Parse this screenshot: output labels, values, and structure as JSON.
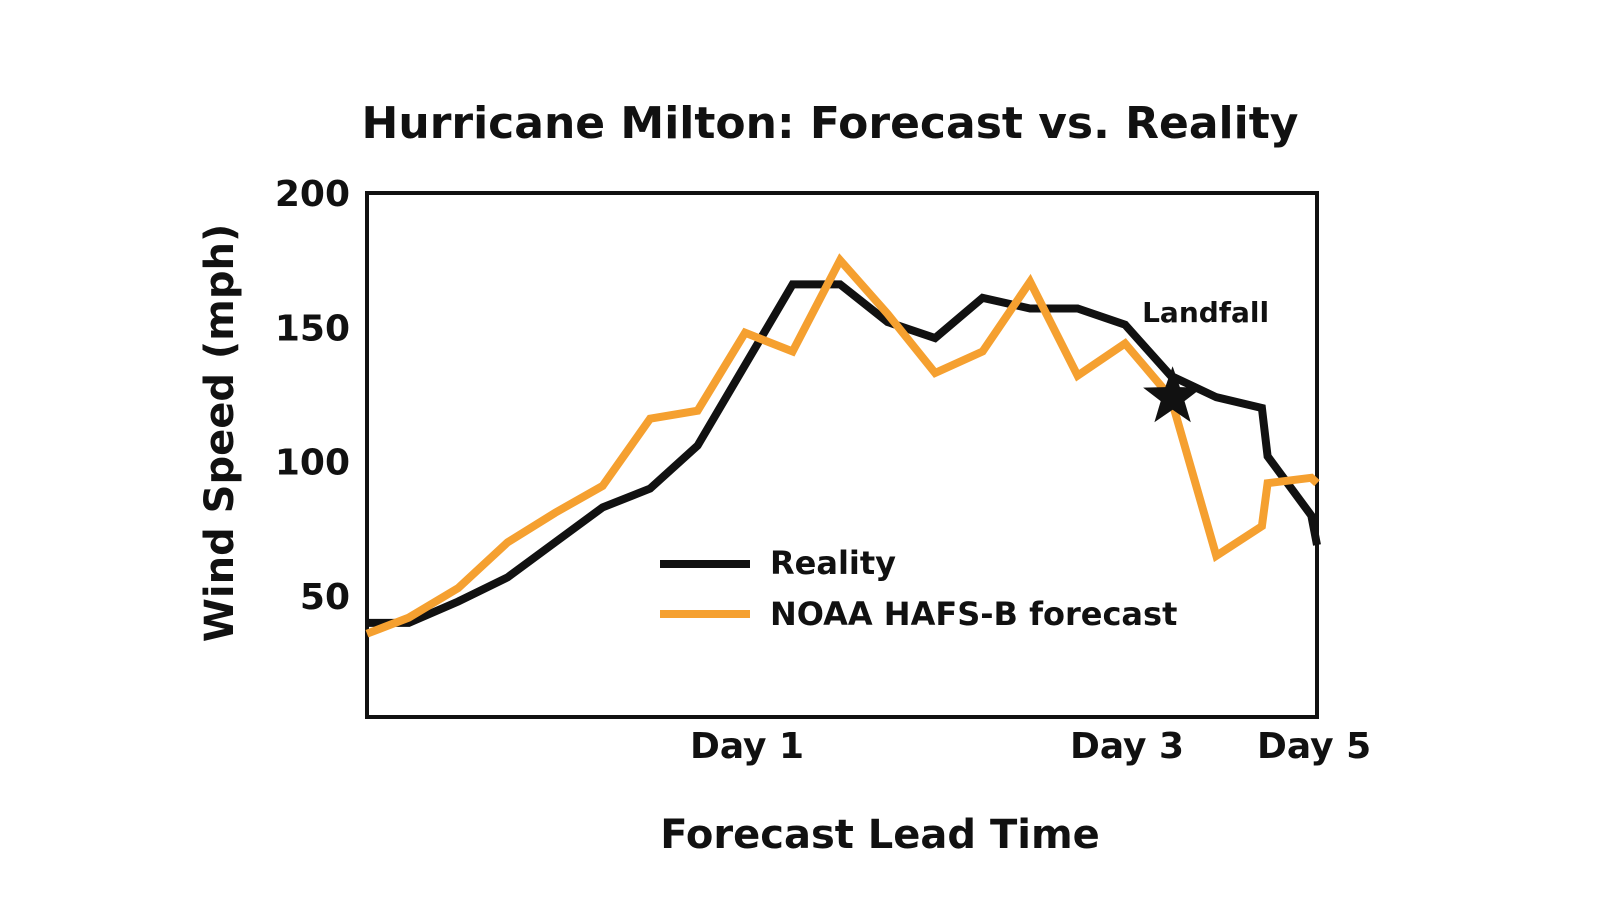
{
  "chart_data": {
    "type": "line",
    "title": "Hurricane Milton: Forecast vs. Reality",
    "xlabel": "Forecast Lead Time",
    "ylabel": "Wind Speed (mph)",
    "xlim": [
      0,
      5
    ],
    "ylim": [
      5,
      200
    ],
    "x_ticks": [
      {
        "value": 2,
        "label": "Day 1"
      },
      {
        "value": 4,
        "label": "Day 3"
      },
      {
        "value": 5,
        "label": "Day 5"
      }
    ],
    "y_ticks": [
      {
        "value": 50,
        "label": "50"
      },
      {
        "value": 100,
        "label": "100"
      },
      {
        "value": 150,
        "label": "150"
      },
      {
        "value": 200,
        "label": "200"
      }
    ],
    "grid": false,
    "legend_position": "bottom-center",
    "series": [
      {
        "name": "Reality",
        "color": "#111111",
        "x": [
          0,
          0.22,
          0.48,
          0.74,
          0.99,
          1.24,
          1.49,
          1.74,
          1.99,
          2.24,
          2.49,
          2.74,
          2.99,
          3.24,
          3.49,
          3.74,
          3.99,
          4.23,
          4.47,
          4.71,
          4.74,
          4.97,
          5.0
        ],
        "values": [
          40,
          40,
          48,
          57,
          70,
          83,
          90,
          106,
          136,
          166,
          166,
          152,
          146,
          161,
          157,
          157,
          151,
          132,
          124,
          120,
          102,
          80,
          69
        ]
      },
      {
        "name": "NOAA HAFS-B forecast",
        "color": "#f5a030",
        "x": [
          0,
          0.22,
          0.48,
          0.74,
          0.99,
          1.24,
          1.49,
          1.74,
          1.99,
          2.24,
          2.49,
          2.74,
          2.99,
          3.24,
          3.49,
          3.74,
          3.99,
          4.23,
          4.47,
          4.71,
          4.74,
          4.97,
          5.0
        ],
        "values": [
          36,
          42,
          53,
          70,
          81,
          91,
          116,
          119,
          148,
          141,
          175,
          155,
          133,
          141,
          167,
          132,
          144,
          124,
          65,
          76,
          92,
          94,
          92
        ]
      }
    ],
    "annotations": [
      {
        "label": "Landfall",
        "x": 4.24,
        "y": 124,
        "marker": "star"
      }
    ]
  }
}
